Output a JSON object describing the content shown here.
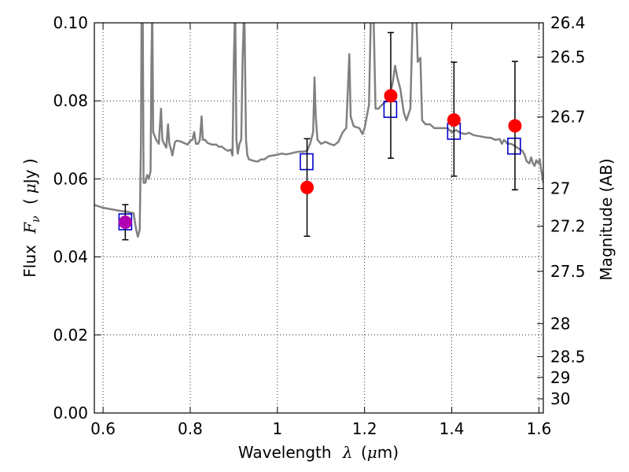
{
  "chart_data": {
    "type": "scatter",
    "xlabel_prefix": "Wavelength",
    "xlabel_symbol": "λ",
    "xlabel_unit_open": "(",
    "xlabel_unit_mu": "μ",
    "xlabel_unit_rest": "m)",
    "ylabel_prefix": "Flux",
    "ylabel_symbol": "F",
    "ylabel_subscript": "ν",
    "ylabel_unit_open": "(",
    "ylabel_unit_mu": "μ",
    "ylabel_unit_rest": "Jy )",
    "y2label": "Magnitude (AB)",
    "xlim": [
      0.58,
      1.61
    ],
    "ylim": [
      0.0,
      0.1
    ],
    "grid": true,
    "x_ticks": [
      {
        "value": 0.6,
        "label": "0.6"
      },
      {
        "value": 0.8,
        "label": "0.8"
      },
      {
        "value": 1.0,
        "label": "1"
      },
      {
        "value": 1.2,
        "label": "1.2"
      },
      {
        "value": 1.4,
        "label": "1.4"
      },
      {
        "value": 1.6,
        "label": "1.6"
      }
    ],
    "y_ticks": [
      {
        "value": 0.0,
        "label": "0.00"
      },
      {
        "value": 0.02,
        "label": "0.02"
      },
      {
        "value": 0.04,
        "label": "0.04"
      },
      {
        "value": 0.06,
        "label": "0.06"
      },
      {
        "value": 0.08,
        "label": "0.08"
      },
      {
        "value": 0.1,
        "label": "0.10"
      }
    ],
    "mag_ticks": [
      {
        "mag": 26.4,
        "label": "26.4"
      },
      {
        "mag": 26.5,
        "label": "26.5"
      },
      {
        "mag": 26.7,
        "label": "26.7"
      },
      {
        "mag": 27.0,
        "label": "27"
      },
      {
        "mag": 27.2,
        "label": "27.2"
      },
      {
        "mag": 27.5,
        "label": "27.5"
      },
      {
        "mag": 28.0,
        "label": "28"
      },
      {
        "mag": 28.5,
        "label": "28.5"
      },
      {
        "mag": 29.0,
        "label": "29"
      },
      {
        "mag": 30.0,
        "label": "30"
      }
    ],
    "series": [
      {
        "name": "model-spectrum",
        "kind": "line",
        "color": "#808080",
        "points": [
          [
            0.58,
            0.0533
          ],
          [
            0.6,
            0.0526
          ],
          [
            0.62,
            0.0522
          ],
          [
            0.64,
            0.0518
          ],
          [
            0.655,
            0.0516
          ],
          [
            0.67,
            0.0512
          ],
          [
            0.676,
            0.047
          ],
          [
            0.68,
            0.0452
          ],
          [
            0.684,
            0.047
          ],
          [
            0.687,
            0.07
          ],
          [
            0.6885,
            0.105
          ],
          [
            0.691,
            0.105
          ],
          [
            0.693,
            0.059
          ],
          [
            0.697,
            0.059
          ],
          [
            0.701,
            0.061
          ],
          [
            0.705,
            0.06
          ],
          [
            0.709,
            0.062
          ],
          [
            0.711,
            0.09
          ],
          [
            0.713,
            0.105
          ],
          [
            0.715,
            0.072
          ],
          [
            0.722,
            0.07
          ],
          [
            0.728,
            0.069
          ],
          [
            0.733,
            0.078
          ],
          [
            0.736,
            0.07
          ],
          [
            0.74,
            0.069
          ],
          [
            0.745,
            0.068
          ],
          [
            0.749,
            0.074
          ],
          [
            0.752,
            0.069
          ],
          [
            0.756,
            0.0675
          ],
          [
            0.759,
            0.066
          ],
          [
            0.765,
            0.0695
          ],
          [
            0.77,
            0.0698
          ],
          [
            0.778,
            0.0696
          ],
          [
            0.786,
            0.0692
          ],
          [
            0.794,
            0.0688
          ],
          [
            0.8,
            0.0698
          ],
          [
            0.805,
            0.07
          ],
          [
            0.809,
            0.072
          ],
          [
            0.813,
            0.069
          ],
          [
            0.818,
            0.069
          ],
          [
            0.822,
            0.07
          ],
          [
            0.826,
            0.076
          ],
          [
            0.829,
            0.07
          ],
          [
            0.834,
            0.07
          ],
          [
            0.84,
            0.0692
          ],
          [
            0.85,
            0.0688
          ],
          [
            0.86,
            0.0688
          ],
          [
            0.866,
            0.0682
          ],
          [
            0.872,
            0.0683
          ],
          [
            0.88,
            0.0676
          ],
          [
            0.886,
            0.0672
          ],
          [
            0.893,
            0.0675
          ],
          [
            0.897,
            0.066
          ],
          [
            0.9,
            0.09
          ],
          [
            0.903,
            0.105
          ],
          [
            0.906,
            0.07
          ],
          [
            0.909,
            0.0665
          ],
          [
            0.913,
            0.069
          ],
          [
            0.917,
            0.07
          ],
          [
            0.92,
            0.09
          ],
          [
            0.924,
            0.105
          ],
          [
            0.928,
            0.07
          ],
          [
            0.931,
            0.066
          ],
          [
            0.935,
            0.065
          ],
          [
            0.94,
            0.0648
          ],
          [
            0.95,
            0.0645
          ],
          [
            0.956,
            0.0645
          ],
          [
            0.962,
            0.065
          ],
          [
            0.97,
            0.065
          ],
          [
            0.98,
            0.0658
          ],
          [
            0.99,
            0.066
          ],
          [
            1.0,
            0.0662
          ],
          [
            1.01,
            0.0665
          ],
          [
            1.02,
            0.0663
          ],
          [
            1.03,
            0.0665
          ],
          [
            1.04,
            0.0668
          ],
          [
            1.05,
            0.067
          ],
          [
            1.06,
            0.067
          ],
          [
            1.068,
            0.0672
          ],
          [
            1.075,
            0.069
          ],
          [
            1.082,
            0.072
          ],
          [
            1.085,
            0.086
          ],
          [
            1.088,
            0.076
          ],
          [
            1.092,
            0.07
          ],
          [
            1.1,
            0.069
          ],
          [
            1.11,
            0.0695
          ],
          [
            1.12,
            0.069
          ],
          [
            1.13,
            0.0686
          ],
          [
            1.14,
            0.0695
          ],
          [
            1.15,
            0.072
          ],
          [
            1.158,
            0.073
          ],
          [
            1.165,
            0.092
          ],
          [
            1.168,
            0.076
          ],
          [
            1.175,
            0.0735
          ],
          [
            1.188,
            0.073
          ],
          [
            1.195,
            0.0715
          ],
          [
            1.2,
            0.073
          ],
          [
            1.205,
            0.076
          ],
          [
            1.21,
            0.079
          ],
          [
            1.215,
            0.105
          ],
          [
            1.22,
            0.105
          ],
          [
            1.225,
            0.078
          ],
          [
            1.232,
            0.078
          ],
          [
            1.24,
            0.079
          ],
          [
            1.25,
            0.08
          ],
          [
            1.258,
            0.081
          ],
          [
            1.265,
            0.085
          ],
          [
            1.27,
            0.089
          ],
          [
            1.275,
            0.086
          ],
          [
            1.282,
            0.083
          ],
          [
            1.29,
            0.077
          ],
          [
            1.296,
            0.075
          ],
          [
            1.305,
            0.078
          ],
          [
            1.31,
            0.1
          ],
          [
            1.313,
            0.105
          ],
          [
            1.318,
            0.105
          ],
          [
            1.322,
            0.09
          ],
          [
            1.328,
            0.091
          ],
          [
            1.332,
            0.075
          ],
          [
            1.34,
            0.074
          ],
          [
            1.35,
            0.074
          ],
          [
            1.36,
            0.073
          ],
          [
            1.375,
            0.073
          ],
          [
            1.39,
            0.073
          ],
          [
            1.4,
            0.072
          ],
          [
            1.41,
            0.0725
          ],
          [
            1.42,
            0.0718
          ],
          [
            1.43,
            0.0715
          ],
          [
            1.44,
            0.0718
          ],
          [
            1.45,
            0.0712
          ],
          [
            1.46,
            0.071
          ],
          [
            1.47,
            0.0708
          ],
          [
            1.48,
            0.0706
          ],
          [
            1.49,
            0.0705
          ],
          [
            1.5,
            0.07
          ],
          [
            1.51,
            0.0702
          ],
          [
            1.515,
            0.069
          ],
          [
            1.52,
            0.07
          ],
          [
            1.528,
            0.069
          ],
          [
            1.535,
            0.069
          ],
          [
            1.54,
            0.0688
          ],
          [
            1.545,
            0.0684
          ],
          [
            1.55,
            0.068
          ],
          [
            1.556,
            0.0676
          ],
          [
            1.562,
            0.0672
          ],
          [
            1.567,
            0.0662
          ],
          [
            1.572,
            0.0645
          ],
          [
            1.578,
            0.064
          ],
          [
            1.582,
            0.0655
          ],
          [
            1.586,
            0.064
          ],
          [
            1.59,
            0.0633
          ],
          [
            1.594,
            0.0648
          ],
          [
            1.598,
            0.064
          ],
          [
            1.602,
            0.065
          ],
          [
            1.605,
            0.0625
          ],
          [
            1.61,
            0.059
          ]
        ]
      },
      {
        "name": "model-photometry",
        "kind": "square-markers",
        "color": "#0000cc",
        "points": [
          [
            0.651,
            0.049
          ],
          [
            1.067,
            0.0644
          ],
          [
            1.259,
            0.0778
          ],
          [
            1.405,
            0.0722
          ],
          [
            1.543,
            0.0684
          ]
        ]
      },
      {
        "name": "observed-photometry",
        "kind": "circle-markers-errorbars",
        "color": "#ff0000",
        "first_point_color": "#b000b0",
        "points": [
          {
            "x": 0.651,
            "y": 0.0489,
            "err_low": 0.0045,
            "err_high": 0.0045
          },
          {
            "x": 1.068,
            "y": 0.0578,
            "err_low": 0.0125,
            "err_high": 0.0125
          },
          {
            "x": 1.26,
            "y": 0.0813,
            "err_low": 0.016,
            "err_high": 0.0162
          },
          {
            "x": 1.405,
            "y": 0.0751,
            "err_low": 0.0144,
            "err_high": 0.0148
          },
          {
            "x": 1.545,
            "y": 0.0736,
            "err_low": 0.0164,
            "err_high": 0.0165
          }
        ]
      }
    ]
  }
}
